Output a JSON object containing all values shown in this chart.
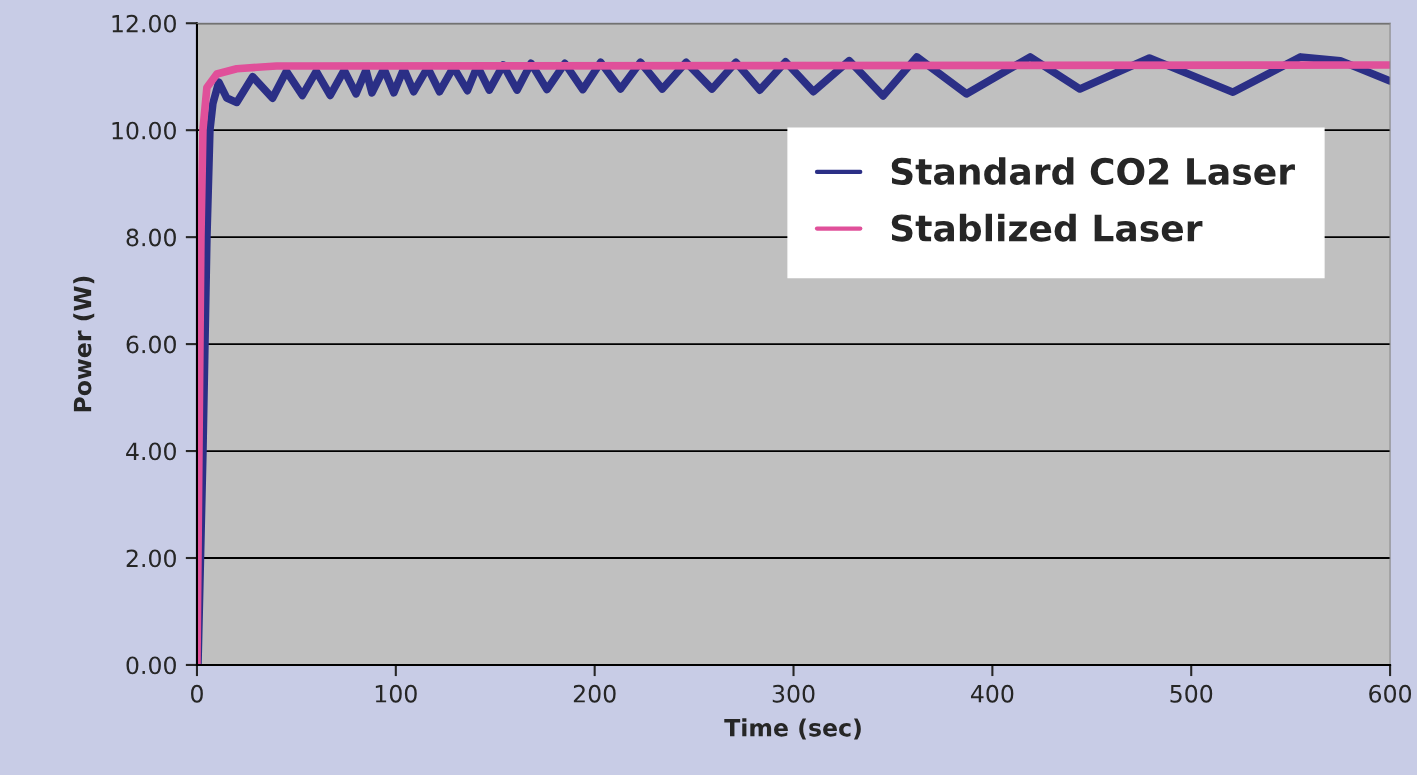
{
  "chart_data": {
    "type": "line",
    "xlabel": "Time (sec)",
    "ylabel": "Power (W)",
    "xlim": [
      0,
      600
    ],
    "xticks": [
      0,
      100,
      200,
      300,
      400,
      500,
      600
    ],
    "ylim": [
      0,
      12
    ],
    "yticks": [
      {
        "value": 0,
        "label": "0.00"
      },
      {
        "value": 2,
        "label": "2.00"
      },
      {
        "value": 4,
        "label": "4.00"
      },
      {
        "value": 6,
        "label": "6.00"
      },
      {
        "value": 8,
        "label": "8.00"
      },
      {
        "value": 10,
        "label": "10.00"
      },
      {
        "value": 12,
        "label": "12.00"
      }
    ],
    "grid": "y",
    "legend": "center right",
    "marker": "none",
    "line_style": "solid",
    "series": [
      {
        "name": "Standard CO2 Laser",
        "color": "#2b2f86",
        "x": [
          0.5,
          3,
          5,
          6.5,
          8,
          11,
          15,
          20,
          28,
          38,
          45,
          53,
          60,
          67,
          74,
          80,
          85,
          88,
          94,
          99,
          104,
          109,
          116,
          122,
          129,
          136,
          141,
          147,
          154,
          161,
          168,
          176,
          185,
          194,
          203,
          213,
          223,
          234,
          246,
          259,
          271,
          283,
          296,
          310,
          328,
          345,
          362,
          387,
          419,
          444,
          479,
          521,
          555,
          575,
          600
        ],
        "values": [
          0,
          4,
          8,
          10,
          10.5,
          10.9,
          10.6,
          10.52,
          11.0,
          10.6,
          11.1,
          10.65,
          11.1,
          10.65,
          11.12,
          10.68,
          11.12,
          10.7,
          11.15,
          10.7,
          11.15,
          10.72,
          11.17,
          10.72,
          11.18,
          10.74,
          11.2,
          10.75,
          11.22,
          10.75,
          11.25,
          10.76,
          11.25,
          10.76,
          11.27,
          10.77,
          11.27,
          10.77,
          11.27,
          10.77,
          11.27,
          10.75,
          11.28,
          10.72,
          11.3,
          10.64,
          11.37,
          10.68,
          11.37,
          10.77,
          11.35,
          10.71,
          11.37,
          11.3,
          10.92
        ]
      },
      {
        "name": "Stablized Laser",
        "color": "#e0509a",
        "x": [
          0,
          2,
          3,
          5,
          10,
          20,
          40,
          600
        ],
        "values": [
          0,
          8,
          10,
          10.8,
          11.05,
          11.15,
          11.2,
          11.22
        ]
      }
    ]
  }
}
